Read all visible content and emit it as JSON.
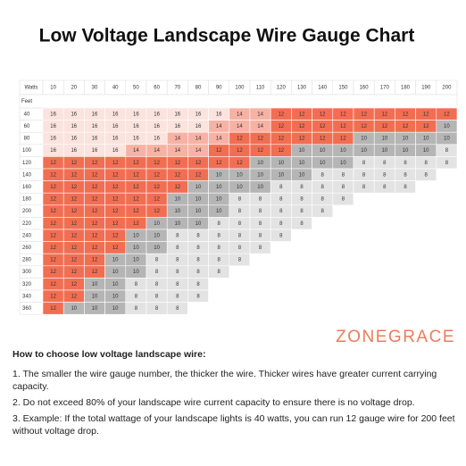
{
  "title": "Low Voltage Landscape Wire Gauge Chart",
  "table": {
    "corner_top": "Watts",
    "corner_left": "Feet",
    "columns": [
      10,
      20,
      30,
      40,
      50,
      60,
      70,
      80,
      90,
      100,
      110,
      120,
      130,
      140,
      150,
      160,
      170,
      180,
      190,
      200
    ],
    "rows": [
      {
        "feet": 40,
        "cells": [
          16,
          16,
          16,
          16,
          16,
          16,
          16,
          16,
          16,
          14,
          14,
          12,
          12,
          12,
          12,
          12,
          12,
          12,
          12,
          12
        ]
      },
      {
        "feet": 60,
        "cells": [
          16,
          16,
          16,
          16,
          16,
          16,
          16,
          16,
          14,
          14,
          14,
          12,
          12,
          12,
          12,
          12,
          12,
          12,
          12,
          10
        ]
      },
      {
        "feet": 80,
        "cells": [
          16,
          16,
          16,
          16,
          16,
          16,
          14,
          14,
          14,
          12,
          12,
          12,
          12,
          12,
          12,
          10,
          10,
          10,
          10,
          10
        ]
      },
      {
        "feet": 100,
        "cells": [
          16,
          16,
          16,
          16,
          14,
          14,
          14,
          14,
          12,
          12,
          12,
          12,
          10,
          10,
          10,
          10,
          10,
          10,
          10,
          8
        ]
      },
      {
        "feet": 120,
        "cells": [
          12,
          12,
          12,
          12,
          12,
          12,
          12,
          12,
          12,
          12,
          10,
          10,
          10,
          10,
          10,
          8,
          8,
          8,
          8,
          8
        ]
      },
      {
        "feet": 140,
        "cells": [
          12,
          12,
          12,
          12,
          12,
          12,
          12,
          12,
          10,
          10,
          10,
          10,
          10,
          8,
          8,
          8,
          8,
          8,
          8,
          null
        ]
      },
      {
        "feet": 160,
        "cells": [
          12,
          12,
          12,
          12,
          12,
          12,
          12,
          10,
          10,
          10,
          10,
          8,
          8,
          8,
          8,
          8,
          8,
          8,
          null,
          null
        ]
      },
      {
        "feet": 180,
        "cells": [
          12,
          12,
          12,
          12,
          12,
          12,
          10,
          10,
          10,
          8,
          8,
          8,
          8,
          8,
          8,
          null,
          null,
          null,
          null,
          null
        ]
      },
      {
        "feet": 200,
        "cells": [
          12,
          12,
          12,
          12,
          12,
          12,
          10,
          10,
          10,
          8,
          8,
          8,
          8,
          8,
          null,
          null,
          null,
          null,
          null,
          null
        ]
      },
      {
        "feet": 220,
        "cells": [
          12,
          12,
          12,
          12,
          12,
          10,
          10,
          10,
          8,
          8,
          8,
          8,
          8,
          null,
          null,
          null,
          null,
          null,
          null,
          null
        ]
      },
      {
        "feet": 240,
        "cells": [
          12,
          12,
          12,
          12,
          10,
          10,
          8,
          8,
          8,
          8,
          8,
          8,
          null,
          null,
          null,
          null,
          null,
          null,
          null,
          null
        ]
      },
      {
        "feet": 260,
        "cells": [
          12,
          12,
          12,
          12,
          10,
          10,
          8,
          8,
          8,
          8,
          8,
          null,
          null,
          null,
          null,
          null,
          null,
          null,
          null,
          null
        ]
      },
      {
        "feet": 280,
        "cells": [
          12,
          12,
          12,
          10,
          10,
          8,
          8,
          8,
          8,
          8,
          null,
          null,
          null,
          null,
          null,
          null,
          null,
          null,
          null,
          null
        ]
      },
      {
        "feet": 300,
        "cells": [
          12,
          12,
          12,
          10,
          10,
          8,
          8,
          8,
          8,
          null,
          null,
          null,
          null,
          null,
          null,
          null,
          null,
          null,
          null,
          null
        ]
      },
      {
        "feet": 320,
        "cells": [
          12,
          12,
          10,
          10,
          8,
          8,
          8,
          8,
          null,
          null,
          null,
          null,
          null,
          null,
          null,
          null,
          null,
          null,
          null,
          null
        ]
      },
      {
        "feet": 340,
        "cells": [
          12,
          12,
          10,
          10,
          8,
          8,
          8,
          8,
          null,
          null,
          null,
          null,
          null,
          null,
          null,
          null,
          null,
          null,
          null,
          null
        ]
      },
      {
        "feet": 360,
        "cells": [
          12,
          10,
          10,
          10,
          8,
          8,
          8,
          null,
          null,
          null,
          null,
          null,
          null,
          null,
          null,
          null,
          null,
          null,
          null,
          null
        ]
      }
    ]
  },
  "gauge_colors": {
    "16": "#fbe3de",
    "14": "#f7b2a4",
    "12": "#f26e52",
    "10": "#b5b5b5",
    "8": "#e3e3e3"
  },
  "brand": "ZONEGRACE",
  "notes": {
    "heading": "How to choose low voltage landscape wire:",
    "items": [
      "1. The smaller the wire gauge number, the thicker the wire. Thicker wires have greater current carrying capacity.",
      "2. Do not exceed 80% of your landscape wire current capacity to ensure there is no voltage drop.",
      "3. Example: If the total wattage of your landscape lights is 40 watts, you can run 12 gauge wire for 200 feet without voltage drop."
    ]
  }
}
